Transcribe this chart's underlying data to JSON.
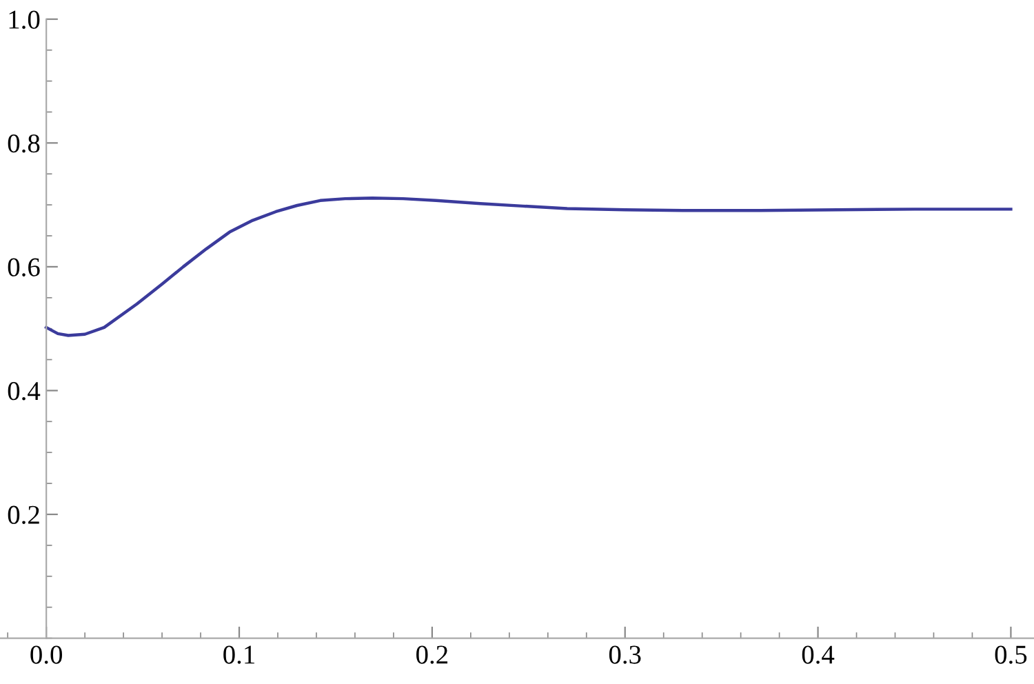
{
  "chart_data": {
    "type": "line",
    "x": [
      0,
      0.006,
      0.0114,
      0.02,
      0.03,
      0.047,
      0.06,
      0.071,
      0.083,
      0.095,
      0.107,
      0.119,
      0.13,
      0.142,
      0.155,
      0.169,
      0.185,
      0.202,
      0.225,
      0.247,
      0.27,
      0.3,
      0.33,
      0.37,
      0.41,
      0.45,
      0.5
    ],
    "series": [
      {
        "color": "#3b3b9c",
        "values": [
          0.502,
          0.492,
          0.489,
          0.491,
          0.502,
          0.54,
          0.572,
          0.6,
          0.629,
          0.656,
          0.675,
          0.689,
          0.699,
          0.707,
          0.71,
          0.711,
          0.71,
          0.707,
          0.702,
          0.698,
          0.694,
          0.692,
          0.691,
          0.691,
          0.692,
          0.693,
          0.693
        ]
      }
    ],
    "xlim": [
      -0.024,
      0.512
    ],
    "ylim": [
      0,
      1.0
    ],
    "xticks": [
      {
        "value": 0,
        "label": "0.0"
      },
      0.1,
      0.2,
      0.3,
      0.4,
      0.5
    ],
    "yticks": [
      0.2,
      0.4,
      0.6,
      0.8,
      {
        "value": 1.0,
        "label": "1.0"
      }
    ],
    "grid": false,
    "marker": "none",
    "line_style": "solid"
  }
}
